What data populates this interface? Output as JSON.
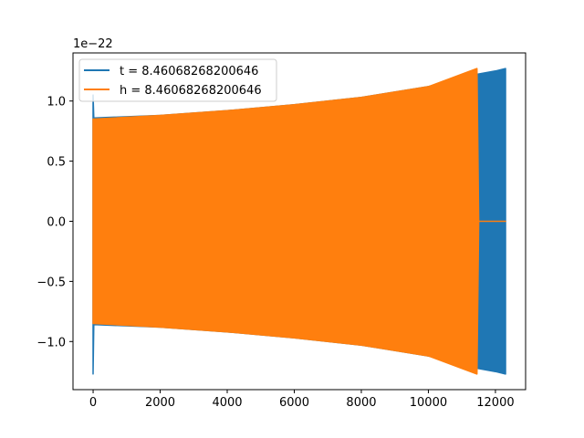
{
  "chart_data": {
    "type": "line",
    "title": "",
    "xlabel": "",
    "ylabel": "",
    "y_offset_label": "1e−22",
    "xlim": [
      -600,
      12900
    ],
    "ylim": [
      -1.4,
      1.4
    ],
    "x_ticks": [
      0,
      2000,
      4000,
      6000,
      8000,
      10000,
      12000
    ],
    "x_tick_labels": [
      "0",
      "2000",
      "4000",
      "6000",
      "8000",
      "10000",
      "12000"
    ],
    "y_ticks": [
      -1.0,
      -0.5,
      0.0,
      0.5,
      1.0
    ],
    "y_tick_labels": [
      "−1.0",
      "−0.5",
      "0.0",
      "0.5",
      "1.0"
    ],
    "grid": false,
    "legend_position": "top-left",
    "series": [
      {
        "name": "t = 8.46068268200646",
        "color": "#1f77b4",
        "x": [
          0,
          20,
          40,
          2000,
          4000,
          6000,
          8000,
          10000,
          11400,
          12000,
          12300
        ],
        "y_upper": [
          1.05,
          0.86,
          0.86,
          0.88,
          0.92,
          0.97,
          1.03,
          1.12,
          1.22,
          1.25,
          1.27
        ],
        "y_lower": [
          -1.27,
          -0.86,
          -0.86,
          -0.88,
          -0.92,
          -0.97,
          -1.03,
          -1.12,
          -1.22,
          -1.25,
          -1.27
        ]
      },
      {
        "name": "h = 8.46068268200646",
        "color": "#ff7f0e",
        "x": [
          0,
          2000,
          4000,
          6000,
          8000,
          10000,
          11450,
          11500,
          12300
        ],
        "y_upper": [
          0.85,
          0.88,
          0.92,
          0.97,
          1.03,
          1.12,
          1.27,
          0,
          0
        ],
        "y_lower": [
          -0.85,
          -0.88,
          -0.92,
          -0.97,
          -1.03,
          -1.12,
          -1.27,
          0,
          0
        ]
      }
    ]
  }
}
